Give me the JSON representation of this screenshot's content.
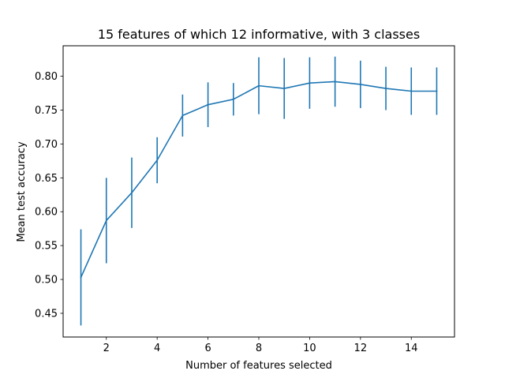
{
  "chart_data": {
    "type": "line",
    "title": "15 features of which 12 informative, with 3 classes",
    "xlabel": "Number of features selected",
    "ylabel": "Mean test accuracy",
    "xlim": [
      0.3,
      15.7
    ],
    "ylim": [
      0.415,
      0.845
    ],
    "xticks": [
      2,
      4,
      6,
      8,
      10,
      12,
      14
    ],
    "yticks": [
      0.45,
      0.5,
      0.55,
      0.6,
      0.65,
      0.7,
      0.75,
      0.8
    ],
    "grid": false,
    "series_color": "#1f77b4",
    "series": [
      {
        "x": [
          1,
          2,
          3,
          4,
          5,
          6,
          7,
          8,
          9,
          10,
          11,
          12,
          13,
          14,
          15
        ],
        "values": [
          0.503,
          0.587,
          0.628,
          0.676,
          0.742,
          0.758,
          0.766,
          0.786,
          0.782,
          0.79,
          0.792,
          0.788,
          0.782,
          0.778,
          0.778
        ],
        "error": [
          0.071,
          0.063,
          0.052,
          0.034,
          0.031,
          0.033,
          0.024,
          0.042,
          0.045,
          0.038,
          0.037,
          0.035,
          0.032,
          0.035,
          0.035
        ]
      }
    ]
  }
}
